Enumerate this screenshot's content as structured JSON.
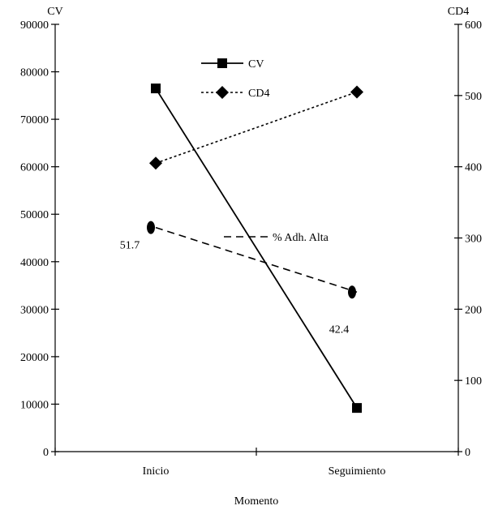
{
  "chart_data": {
    "type": "line",
    "title": "",
    "xlabel": "Momento",
    "ylabel_left": "CV",
    "ylabel_right": "CD4",
    "categories": [
      "Inicio",
      "Seguimiento"
    ],
    "y_left": {
      "min": 0,
      "max": 90000,
      "ticks": [
        "0",
        "10000",
        "20000",
        "30000",
        "40000",
        "50000",
        "60000",
        "70000",
        "80000",
        "90000"
      ]
    },
    "y_right": {
      "min": 0,
      "max": 600,
      "ticks": [
        "0",
        "100",
        "200",
        "300",
        "400",
        "500",
        "600"
      ]
    },
    "grid": false,
    "legend_position": "top-center",
    "series": [
      {
        "name": "CV",
        "axis": "left",
        "values": [
          76500,
          9200
        ],
        "marker": "square",
        "line": "solid"
      },
      {
        "name": "CD4",
        "axis": "right",
        "values": [
          405,
          505
        ],
        "marker": "diamond",
        "line": "dotted"
      },
      {
        "name": "% Adh. Alta",
        "axis": "left",
        "values": [
          47200,
          33600
        ],
        "marker": "ellipse",
        "line": "dashed",
        "data_labels": [
          "51.7",
          "42.4"
        ]
      }
    ]
  }
}
